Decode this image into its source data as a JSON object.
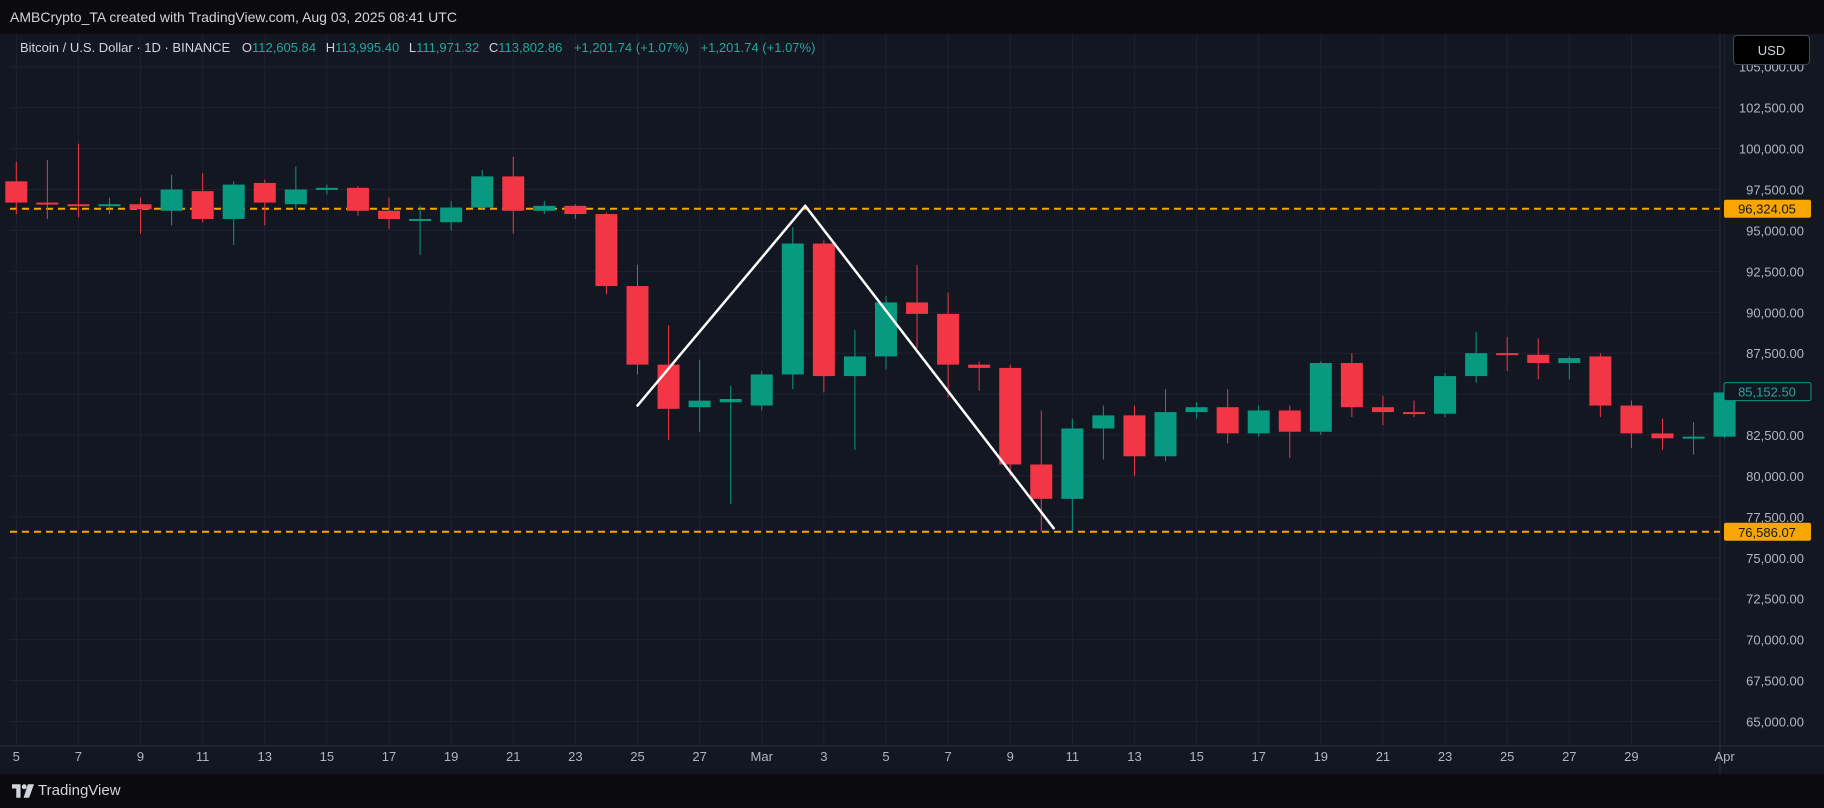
{
  "header": {
    "attribution": "AMBCrypto_TA created with TradingView.com, Aug 03, 2025 08:41 UTC"
  },
  "legend": {
    "symbol": "Bitcoin / U.S. Dollar · 1D · BINANCE",
    "open_label": "O",
    "open": "112,605.84",
    "high_label": "H",
    "high": "113,995.40",
    "low_label": "L",
    "low": "111,971.32",
    "close_label": "C",
    "close": "113,802.86",
    "change": "+1,201.74 (+1.07%)",
    "change2": "+1,201.74 (+1.07%)"
  },
  "currency_button": "USD",
  "footer": {
    "brand": "TradingView"
  },
  "colors": {
    "up": "#089981",
    "down": "#f23645",
    "level": "#f7a600",
    "background": "#131722",
    "grid": "#1e2230",
    "pattern_line": "#ffffff"
  },
  "chart_data": {
    "type": "candlestick",
    "ylim": [
      63500,
      107000
    ],
    "y_ticks": [
      65000,
      67500,
      70000,
      72500,
      75000,
      77500,
      80000,
      82500,
      85000,
      87500,
      90000,
      92500,
      95000,
      97500,
      100000,
      102500,
      105000
    ],
    "y_tick_labels": [
      "65,000.00",
      "67,500.00",
      "70,000.00",
      "72,500.00",
      "75,000.00",
      "77,500.00",
      "80,000.00",
      "82,500.00",
      "85,000.00",
      "87,500.00",
      "90,000.00",
      "92,500.00",
      "95,000.00",
      "97,500.00",
      "100,000.00",
      "102,500.00",
      "105,000.00"
    ],
    "x_tick_labels": [
      {
        "i": 0,
        "label": "5"
      },
      {
        "i": 2,
        "label": "7"
      },
      {
        "i": 4,
        "label": "9"
      },
      {
        "i": 6,
        "label": "11"
      },
      {
        "i": 8,
        "label": "13"
      },
      {
        "i": 10,
        "label": "15"
      },
      {
        "i": 12,
        "label": "17"
      },
      {
        "i": 14,
        "label": "19"
      },
      {
        "i": 16,
        "label": "21"
      },
      {
        "i": 18,
        "label": "23"
      },
      {
        "i": 20,
        "label": "25"
      },
      {
        "i": 22,
        "label": "27"
      },
      {
        "i": 24,
        "label": "Mar"
      },
      {
        "i": 26,
        "label": "3"
      },
      {
        "i": 28,
        "label": "5"
      },
      {
        "i": 30,
        "label": "7"
      },
      {
        "i": 32,
        "label": "9"
      },
      {
        "i": 34,
        "label": "11"
      },
      {
        "i": 36,
        "label": "13"
      },
      {
        "i": 38,
        "label": "15"
      },
      {
        "i": 40,
        "label": "17"
      },
      {
        "i": 42,
        "label": "19"
      },
      {
        "i": 44,
        "label": "21"
      },
      {
        "i": 46,
        "label": "23"
      },
      {
        "i": 48,
        "label": "25"
      },
      {
        "i": 50,
        "label": "27"
      },
      {
        "i": 52,
        "label": "29"
      },
      {
        "i": 55,
        "label": "Apr"
      }
    ],
    "candles": [
      {
        "o": 98000,
        "h": 99200,
        "l": 96000,
        "c": 96700
      },
      {
        "o": 96700,
        "h": 99300,
        "l": 95700,
        "c": 96600
      },
      {
        "o": 96600,
        "h": 100300,
        "l": 95800,
        "c": 96500
      },
      {
        "o": 96500,
        "h": 97000,
        "l": 96000,
        "c": 96600
      },
      {
        "o": 96600,
        "h": 97000,
        "l": 94800,
        "c": 96300
      },
      {
        "o": 96200,
        "h": 98400,
        "l": 95300,
        "c": 97500
      },
      {
        "o": 97400,
        "h": 98500,
        "l": 95500,
        "c": 95700
      },
      {
        "o": 95700,
        "h": 98000,
        "l": 94100,
        "c": 97800
      },
      {
        "o": 97900,
        "h": 98100,
        "l": 95300,
        "c": 96700
      },
      {
        "o": 96600,
        "h": 98900,
        "l": 96300,
        "c": 97500
      },
      {
        "o": 97500,
        "h": 97800,
        "l": 97200,
        "c": 97600
      },
      {
        "o": 97600,
        "h": 97700,
        "l": 95900,
        "c": 96200
      },
      {
        "o": 96200,
        "h": 97000,
        "l": 95100,
        "c": 95700
      },
      {
        "o": 95600,
        "h": 96500,
        "l": 93500,
        "c": 95700
      },
      {
        "o": 95500,
        "h": 96800,
        "l": 95000,
        "c": 96400
      },
      {
        "o": 96400,
        "h": 98700,
        "l": 96300,
        "c": 98300
      },
      {
        "o": 98300,
        "h": 99500,
        "l": 94800,
        "c": 96200
      },
      {
        "o": 96200,
        "h": 96800,
        "l": 96000,
        "c": 96500
      },
      {
        "o": 96500,
        "h": 96600,
        "l": 95700,
        "c": 96000
      },
      {
        "o": 96000,
        "h": 96100,
        "l": 91100,
        "c": 91600
      },
      {
        "o": 91600,
        "h": 92900,
        "l": 86200,
        "c": 86800
      },
      {
        "o": 86800,
        "h": 89200,
        "l": 82200,
        "c": 84100
      },
      {
        "o": 84200,
        "h": 87100,
        "l": 82700,
        "c": 84600
      },
      {
        "o": 84500,
        "h": 85500,
        "l": 78300,
        "c": 84700
      },
      {
        "o": 84300,
        "h": 86400,
        "l": 84000,
        "c": 86200
      },
      {
        "o": 86200,
        "h": 95200,
        "l": 85300,
        "c": 94200
      },
      {
        "o": 94200,
        "h": 94400,
        "l": 85100,
        "c": 86100
      },
      {
        "o": 86100,
        "h": 88900,
        "l": 81600,
        "c": 87300
      },
      {
        "o": 87300,
        "h": 91000,
        "l": 86500,
        "c": 90600
      },
      {
        "o": 90600,
        "h": 92900,
        "l": 87800,
        "c": 89900
      },
      {
        "o": 89900,
        "h": 91200,
        "l": 84800,
        "c": 86800
      },
      {
        "o": 86800,
        "h": 87000,
        "l": 85200,
        "c": 86600
      },
      {
        "o": 86600,
        "h": 86800,
        "l": 80000,
        "c": 80700
      },
      {
        "o": 80700,
        "h": 84000,
        "l": 76600,
        "c": 78600
      },
      {
        "o": 78600,
        "h": 83500,
        "l": 76600,
        "c": 82900
      },
      {
        "o": 82900,
        "h": 84300,
        "l": 81000,
        "c": 83700
      },
      {
        "o": 83700,
        "h": 84300,
        "l": 80000,
        "c": 81200
      },
      {
        "o": 81200,
        "h": 85300,
        "l": 80900,
        "c": 83900
      },
      {
        "o": 83900,
        "h": 84500,
        "l": 83500,
        "c": 84200
      },
      {
        "o": 84200,
        "h": 85300,
        "l": 82000,
        "c": 82600
      },
      {
        "o": 82600,
        "h": 84300,
        "l": 82400,
        "c": 84000
      },
      {
        "o": 84000,
        "h": 84300,
        "l": 81100,
        "c": 82700
      },
      {
        "o": 82700,
        "h": 87000,
        "l": 82500,
        "c": 86900
      },
      {
        "o": 86900,
        "h": 87500,
        "l": 83600,
        "c": 84200
      },
      {
        "o": 84200,
        "h": 84900,
        "l": 83100,
        "c": 83900
      },
      {
        "o": 83900,
        "h": 84600,
        "l": 83600,
        "c": 83800
      },
      {
        "o": 83800,
        "h": 86300,
        "l": 83600,
        "c": 86100
      },
      {
        "o": 86100,
        "h": 88800,
        "l": 85700,
        "c": 87500
      },
      {
        "o": 87500,
        "h": 88500,
        "l": 86400,
        "c": 87400
      },
      {
        "o": 87400,
        "h": 88400,
        "l": 85900,
        "c": 86900
      },
      {
        "o": 86900,
        "h": 87300,
        "l": 85900,
        "c": 87200
      },
      {
        "o": 87300,
        "h": 87500,
        "l": 83600,
        "c": 84300
      },
      {
        "o": 84300,
        "h": 84600,
        "l": 81700,
        "c": 82600
      },
      {
        "o": 82600,
        "h": 83500,
        "l": 81600,
        "c": 82300
      },
      {
        "o": 82300,
        "h": 83300,
        "l": 81300,
        "c": 82400
      },
      {
        "o": 82400,
        "h": 85200,
        "l": 82300,
        "c": 85100
      }
    ],
    "levels": [
      {
        "value": 96324.05,
        "label": "96,324.05"
      },
      {
        "value": 76586.07,
        "label": "76,586.07"
      }
    ],
    "last_price": {
      "value": 85152.5,
      "label": "85,152.50"
    },
    "pattern_lines": [
      {
        "from": {
          "i": 20.0,
          "y": 84300
        },
        "to": {
          "i": 25.4,
          "y": 96500
        }
      },
      {
        "from": {
          "i": 25.4,
          "y": 96500
        },
        "to": {
          "i": 33.4,
          "y": 76800
        }
      }
    ]
  }
}
